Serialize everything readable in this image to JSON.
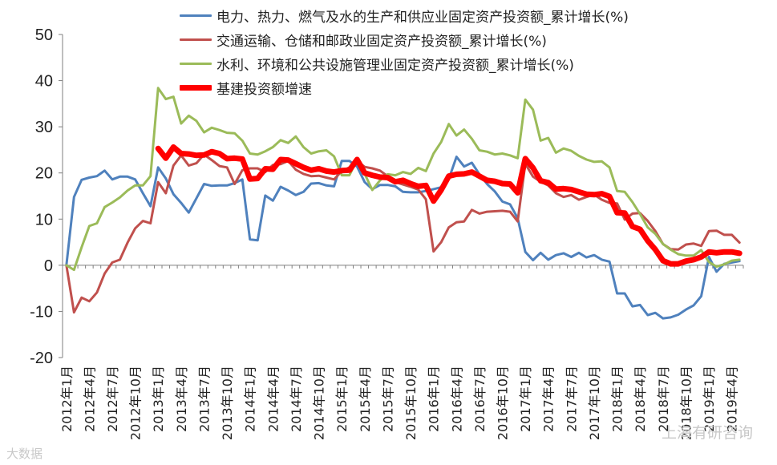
{
  "chart_data": {
    "type": "line",
    "title": "",
    "xlabel": "",
    "ylabel": "",
    "ylim": [
      -20,
      50
    ],
    "yticks": [
      -20,
      -10,
      0,
      10,
      20,
      30,
      40,
      50
    ],
    "grid": false,
    "legend_position": "top",
    "x": [
      "2012年1月",
      "2012年2月",
      "2012年3月",
      "2012年4月",
      "2012年5月",
      "2012年6月",
      "2012年7月",
      "2012年8月",
      "2012年9月",
      "2012年10月",
      "2012年11月",
      "2012年12月",
      "2013年1月",
      "2013年2月",
      "2013年3月",
      "2013年4月",
      "2013年5月",
      "2013年6月",
      "2013年7月",
      "2013年8月",
      "2013年9月",
      "2013年10月",
      "2013年11月",
      "2013年12月",
      "2014年1月",
      "2014年2月",
      "2014年3月",
      "2014年4月",
      "2014年5月",
      "2014年6月",
      "2014年7月",
      "2014年8月",
      "2014年9月",
      "2014年10月",
      "2014年11月",
      "2014年12月",
      "2015年1月",
      "2015年2月",
      "2015年3月",
      "2015年4月",
      "2015年5月",
      "2015年6月",
      "2015年7月",
      "2015年8月",
      "2015年9月",
      "2015年10月",
      "2015年11月",
      "2015年12月",
      "2016年1月",
      "2016年2月",
      "2016年3月",
      "2016年4月",
      "2016年5月",
      "2016年6月",
      "2016年7月",
      "2016年8月",
      "2016年9月",
      "2016年10月",
      "2016年11月",
      "2016年12月",
      "2017年1月",
      "2017年2月",
      "2017年3月",
      "2017年4月",
      "2017年5月",
      "2017年6月",
      "2017年7月",
      "2017年8月",
      "2017年9月",
      "2017年10月",
      "2017年11月",
      "2017年12月",
      "2018年1月",
      "2018年2月",
      "2018年3月",
      "2018年4月",
      "2018年5月",
      "2018年6月",
      "2018年7月",
      "2018年8月",
      "2018年9月",
      "2018年10月",
      "2018年11月",
      "2018年12月",
      "2019年1月",
      "2019年2月",
      "2019年3月",
      "2019年4月",
      "2019年5月"
    ],
    "x_tick_labels": [
      "2012年1月",
      "2012年4月",
      "2012年7月",
      "2012年10月",
      "2013年1月",
      "2013年4月",
      "2013年7月",
      "2013年10月",
      "2014年1月",
      "2014年4月",
      "2014年7月",
      "2014年10月",
      "2015年1月",
      "2015年4月",
      "2015年7月",
      "2015年10月",
      "2016年1月",
      "2016年4月",
      "2016年7月",
      "2016年10月",
      "2017年1月",
      "2017年4月",
      "2017年7月",
      "2017年10月",
      "2018年1月",
      "2018年4月",
      "2018年7月",
      "2018年10月",
      "2019年1月",
      "2019年4月"
    ],
    "series": [
      {
        "name": "电力、热力、燃气及水的生产和供应业固定资产投资额_累计增长(%)",
        "color": "#4f81bd",
        "width": 3,
        "values": [
          0.0,
          14.8,
          18.5,
          19.0,
          19.3,
          20.5,
          18.6,
          19.2,
          19.2,
          18.6,
          15.6,
          12.8,
          21.2,
          18.8,
          15.4,
          13.5,
          11.4,
          14.5,
          17.6,
          17.2,
          17.3,
          17.3,
          17.8,
          18.6,
          5.6,
          5.4,
          15.1,
          14.0,
          17.0,
          16.2,
          15.2,
          15.9,
          17.7,
          17.8,
          17.3,
          17.1,
          22.6,
          22.6,
          21.4,
          18.0,
          16.5,
          17.4,
          17.4,
          17.1,
          15.9,
          15.8,
          15.8,
          16.1,
          16.5,
          16.9,
          18.7,
          23.5,
          21.4,
          22.2,
          19.7,
          17.6,
          16.0,
          13.8,
          13.2,
          10.2,
          2.9,
          1.1,
          2.7,
          1.2,
          2.2,
          2.6,
          1.8,
          2.7,
          1.7,
          2.2,
          1.2,
          0.8,
          -6.1,
          -6.1,
          -8.9,
          -8.6,
          -10.8,
          -10.3,
          -11.5,
          -11.3,
          -10.7,
          -9.6,
          -8.7,
          -6.7,
          1.8,
          -1.4,
          0.3,
          0.6,
          0.9
        ]
      },
      {
        "name": "交通运输、仓储和邮政业固定资产投资额_累计增长(%)",
        "color": "#c0504d",
        "width": 3,
        "values": [
          0.0,
          -10.2,
          -7.0,
          -7.8,
          -5.9,
          -1.8,
          0.6,
          1.2,
          4.9,
          8.0,
          9.6,
          9.1,
          18.0,
          15.6,
          21.6,
          23.8,
          21.6,
          22.1,
          24.0,
          22.8,
          21.5,
          21.2,
          17.6,
          20.6,
          21.0,
          21.0,
          20.2,
          21.7,
          21.9,
          22.6,
          20.7,
          19.8,
          19.3,
          19.4,
          19.0,
          18.6,
          20.4,
          21.2,
          22.6,
          21.3,
          21.0,
          20.5,
          19.3,
          18.0,
          17.5,
          17.0,
          16.4,
          14.3,
          3.0,
          5.0,
          8.2,
          9.3,
          9.5,
          12.0,
          11.2,
          11.6,
          11.7,
          11.8,
          11.6,
          9.5,
          22.0,
          19.2,
          18.1,
          17.3,
          15.6,
          14.8,
          15.2,
          14.2,
          14.8,
          15.3,
          14.2,
          13.5,
          13.4,
          9.9,
          11.2,
          11.3,
          9.6,
          7.4,
          4.6,
          3.5,
          3.4,
          4.5,
          4.7,
          4.2,
          7.4,
          7.5,
          6.6,
          6.6,
          4.9
        ]
      },
      {
        "name": "水利、环境和公共设施管理业固定资产投资额_累计增长(%)",
        "color": "#9bbb59",
        "width": 3,
        "values": [
          0.0,
          -1.0,
          3.9,
          8.5,
          9.1,
          12.6,
          13.6,
          14.7,
          16.2,
          17.3,
          17.3,
          19.3,
          38.4,
          36.0,
          36.5,
          30.7,
          32.4,
          31.3,
          28.8,
          29.8,
          29.3,
          28.7,
          28.6,
          27.0,
          24.2,
          24.0,
          24.7,
          25.6,
          27.1,
          26.5,
          27.9,
          25.6,
          24.2,
          24.7,
          24.9,
          23.6,
          19.5,
          19.5,
          22.8,
          19.8,
          16.3,
          18.4,
          19.7,
          19.5,
          20.2,
          19.8,
          21.1,
          20.4,
          24.2,
          26.7,
          30.6,
          28.1,
          29.4,
          27.4,
          24.9,
          24.6,
          24.0,
          24.2,
          23.8,
          23.2,
          35.9,
          33.7,
          27.0,
          27.6,
          24.4,
          25.3,
          24.8,
          23.7,
          22.9,
          22.4,
          22.5,
          21.2,
          16.1,
          15.9,
          13.7,
          11.1,
          8.2,
          6.8,
          4.6,
          3.4,
          2.4,
          2.1,
          2.1,
          3.3,
          0.7,
          -0.3,
          0.2,
          1.0,
          1.2
        ]
      },
      {
        "name": "基建投资额增速",
        "color": "#ff0000",
        "width": 7,
        "values": [
          null,
          null,
          null,
          null,
          null,
          null,
          null,
          null,
          null,
          null,
          null,
          null,
          25.3,
          23.2,
          25.6,
          24.2,
          24.1,
          23.8,
          23.9,
          24.6,
          24.2,
          23.1,
          23.2,
          23.0,
          18.7,
          18.8,
          20.9,
          20.8,
          22.9,
          22.8,
          22.0,
          21.2,
          20.6,
          20.9,
          20.4,
          20.2,
          20.5,
          20.6,
          22.9,
          20.0,
          19.5,
          19.1,
          19.0,
          18.1,
          18.4,
          17.7,
          17.1,
          17.3,
          13.9,
          16.3,
          19.3,
          19.7,
          19.8,
          20.2,
          19.3,
          18.4,
          18.2,
          17.7,
          17.6,
          15.7,
          23.1,
          21.1,
          18.3,
          17.9,
          16.5,
          16.6,
          16.4,
          15.9,
          15.4,
          15.3,
          15.5,
          14.9,
          11.4,
          11.3,
          8.4,
          7.8,
          5.3,
          3.4,
          1.0,
          0.3,
          0.3,
          0.9,
          1.2,
          1.8,
          2.9,
          2.7,
          2.9,
          2.9,
          2.6
        ]
      }
    ]
  },
  "watermarks": [
    "上海有研咨询",
    "大数据"
  ]
}
